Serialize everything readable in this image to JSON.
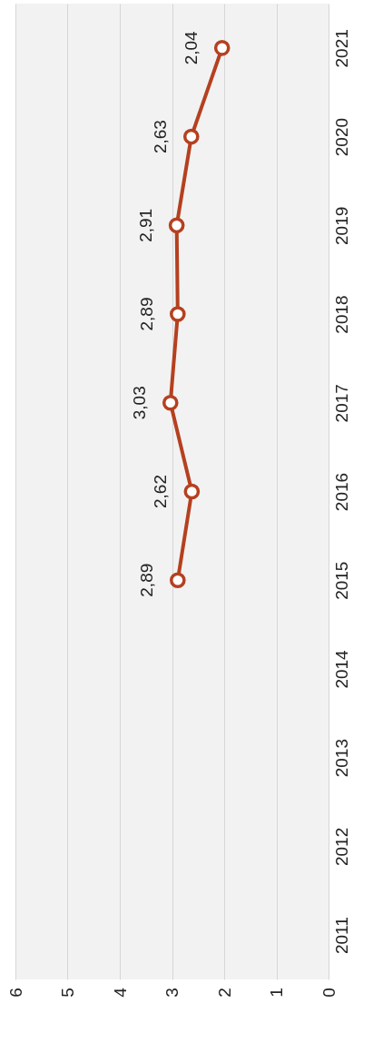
{
  "chart_data": {
    "type": "line",
    "orientation": "horizontal",
    "categories": [
      "2021",
      "2020",
      "2019",
      "2018",
      "2017",
      "2016",
      "2015",
      "2014",
      "2013",
      "2012",
      "2011"
    ],
    "series": [
      {
        "color": "#b5401f",
        "values": [
          2.04,
          2.63,
          2.91,
          2.89,
          3.03,
          2.62,
          2.89,
          null,
          null,
          null,
          null
        ],
        "value_labels": [
          "2,04",
          "2,63",
          "2,91",
          "2,89",
          "3,03",
          "2,62",
          "2,89",
          null,
          null,
          null,
          null
        ]
      }
    ],
    "xlim": [
      6,
      0
    ],
    "xticks": [
      6,
      5,
      4,
      3,
      2,
      1,
      0
    ],
    "grid": "x",
    "marker": "circle",
    "line_style": "solid"
  }
}
